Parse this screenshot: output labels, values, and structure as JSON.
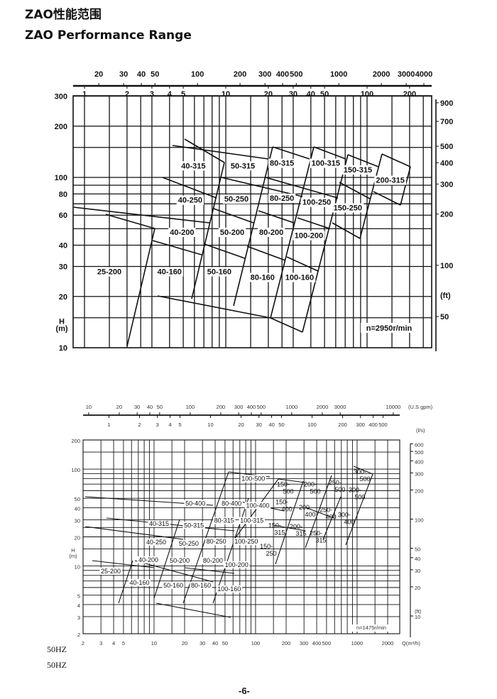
{
  "header": {
    "title_cn": "ZAO性能范围",
    "title_en": "ZAO Performance Range"
  },
  "chart_data": [
    {
      "type": "scatter",
      "title": "",
      "speed_label": "n=2950r/min",
      "grid": true,
      "yaxis": {
        "label_top": "H",
        "label_bottom": "(m)",
        "scale": "log",
        "range": [
          10,
          300
        ],
        "ticks": [
          10,
          20,
          30,
          40,
          60,
          80,
          100,
          200,
          300
        ]
      },
      "yaxis_right": {
        "label": "(ft)",
        "ticks": [
          50,
          100,
          200,
          300,
          400,
          500,
          700,
          900
        ]
      },
      "xaxis_top_gpm": {
        "ticks": [
          20,
          30,
          40,
          50,
          100,
          200,
          300,
          400,
          500,
          1000,
          2000,
          3000,
          4000
        ]
      },
      "xaxis_top_ls": {
        "scale": "log",
        "ticks": [
          1,
          2,
          3,
          4,
          5,
          10,
          20,
          30,
          40,
          50,
          100,
          200
        ]
      },
      "regions": [
        {
          "label": "40-315",
          "q": 5.9,
          "h": 113
        },
        {
          "label": "50-315",
          "q": 13.2,
          "h": 113
        },
        {
          "label": "80-315",
          "q": 25,
          "h": 117
        },
        {
          "label": "100-315",
          "q": 51,
          "h": 117
        },
        {
          "label": "150-315",
          "q": 86,
          "h": 107
        },
        {
          "label": "200-315",
          "q": 146,
          "h": 93
        },
        {
          "label": "40-250",
          "q": 5.6,
          "h": 71
        },
        {
          "label": "50-250",
          "q": 11.9,
          "h": 72
        },
        {
          "label": "80-250",
          "q": 25,
          "h": 73
        },
        {
          "label": "100-250",
          "q": 44,
          "h": 69
        },
        {
          "label": "150-250",
          "q": 73,
          "h": 64
        },
        {
          "label": "40-200",
          "q": 4.9,
          "h": 46
        },
        {
          "label": "50-200",
          "q": 11.1,
          "h": 46
        },
        {
          "label": "80-200",
          "q": 21,
          "h": 46
        },
        {
          "label": "100-200",
          "q": 38.7,
          "h": 44
        },
        {
          "label": "25-200",
          "q": 1.5,
          "h": 27
        },
        {
          "label": "40-160",
          "q": 4.0,
          "h": 27
        },
        {
          "label": "50-160",
          "q": 9.0,
          "h": 27
        },
        {
          "label": "80-160",
          "q": 18.2,
          "h": 25
        },
        {
          "label": "100-160",
          "q": 33.3,
          "h": 25
        }
      ]
    },
    {
      "type": "scatter",
      "title": "",
      "speed_label": "n=1475r/min",
      "grid": true,
      "yaxis": {
        "label_top": "H",
        "label_bottom": "(m)",
        "scale": "log",
        "range": [
          2,
          200
        ],
        "ticks": [
          2,
          3,
          4,
          5,
          10,
          20,
          30,
          40,
          50,
          100,
          200
        ]
      },
      "yaxis_right": {
        "label": "(ft)",
        "ticks": [
          10,
          20,
          30,
          40,
          50,
          100,
          200,
          300,
          400,
          500,
          600
        ]
      },
      "xaxis_bottom": {
        "label": "Q(m³/h)",
        "scale": "log",
        "ticks": [
          2,
          3,
          4,
          5,
          10,
          20,
          30,
          40,
          50,
          100,
          200,
          300,
          400,
          500,
          1000,
          2000
        ]
      },
      "xaxis_top_gpm": {
        "label": "(U.S gpm)",
        "ticks": [
          10,
          20,
          30,
          40,
          50,
          100,
          200,
          300,
          400,
          500,
          1000,
          2000,
          3000,
          10000
        ]
      },
      "xaxis_top_ls": {
        "label": "(l/s)",
        "ticks": [
          1,
          2,
          3,
          4,
          5,
          10,
          20,
          30,
          40,
          50,
          100,
          200,
          300,
          400,
          500
        ]
      },
      "regions": [
        {
          "label": "100-500",
          "q": 95,
          "h": 76
        },
        {
          "label": "150-500",
          "q": 197,
          "h": 64,
          "stacked": true
        },
        {
          "label": "200-500",
          "q": 363,
          "h": 64,
          "stacked": true
        },
        {
          "label": "250-500",
          "q": 637,
          "h": 67,
          "stacked": true
        },
        {
          "label": "300-500",
          "q": 1120,
          "h": 86,
          "stacked": true
        },
        {
          "label": "300-500",
          "q": 1000,
          "h": 56,
          "stacked": true
        },
        {
          "label": "50-400",
          "q": 25.5,
          "h": 42
        },
        {
          "label": "80-400",
          "q": 58,
          "h": 42
        },
        {
          "label": "100-400",
          "q": 105,
          "h": 40
        },
        {
          "label": "150-400",
          "q": 191,
          "h": 42,
          "stacked": true
        },
        {
          "label": "200-400",
          "q": 324,
          "h": 37,
          "stacked": true
        },
        {
          "label": "250-400",
          "q": 518,
          "h": 35,
          "stacked": true
        },
        {
          "label": "300-400",
          "q": 785,
          "h": 31,
          "stacked": true
        },
        {
          "label": "40-315",
          "q": 11.2,
          "h": 26
        },
        {
          "label": "50-315",
          "q": 24.7,
          "h": 25
        },
        {
          "label": "80-315",
          "q": 49,
          "h": 28
        },
        {
          "label": "100-315",
          "q": 92,
          "h": 28
        },
        {
          "label": "150-315",
          "q": 162,
          "h": 24,
          "stacked": true
        },
        {
          "label": "200-315",
          "q": 263,
          "h": 23.5,
          "stacked": true
        },
        {
          "label": "250-315",
          "q": 413,
          "h": 20,
          "stacked": true
        },
        {
          "label": "40-250",
          "q": 10.5,
          "h": 16.8
        },
        {
          "label": "50-250",
          "q": 22,
          "h": 16.2
        },
        {
          "label": "80-250",
          "q": 41,
          "h": 17
        },
        {
          "label": "100-250",
          "q": 81,
          "h": 17
        },
        {
          "label": "150-250",
          "q": 134,
          "h": 14.6,
          "stacked": true
        },
        {
          "label": "40-200",
          "q": 8.8,
          "h": 11
        },
        {
          "label": "50-200",
          "q": 17.9,
          "h": 10.8
        },
        {
          "label": "80-200",
          "q": 38,
          "h": 10.8
        },
        {
          "label": "100-200",
          "q": 65,
          "h": 9.8
        },
        {
          "label": "25-200",
          "q": 3.75,
          "h": 8.4
        },
        {
          "label": "40-160",
          "q": 7.2,
          "h": 6.4
        },
        {
          "label": "50-160",
          "q": 15.5,
          "h": 6
        },
        {
          "label": "80-160",
          "q": 29,
          "h": 6
        },
        {
          "label": "100-160",
          "q": 55,
          "h": 5.5
        }
      ]
    }
  ],
  "footer": {
    "freq_1": "50HZ",
    "freq_2": "50HZ",
    "page": "-6-"
  }
}
